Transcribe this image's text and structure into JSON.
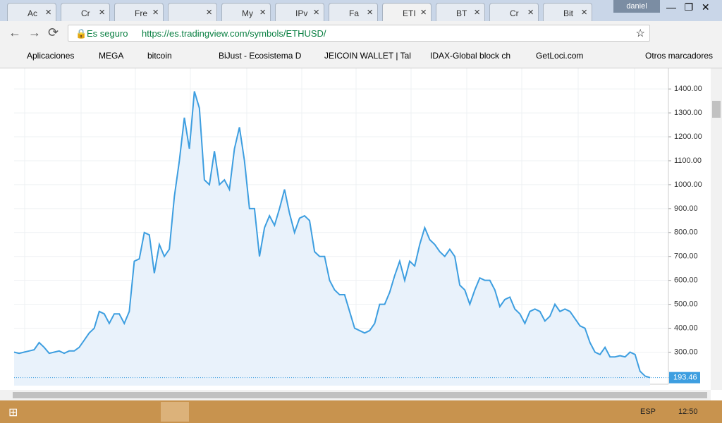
{
  "browser": {
    "user": "daniel",
    "tabs": [
      "Ac",
      "Cr",
      "Fre",
      "My",
      "IPv",
      "Fa",
      "ETI",
      "BT",
      "Cr",
      "Bit"
    ],
    "security": "Es seguro",
    "url": "https://es.tradingview.com/symbols/ETHUSD/",
    "bookmarks": [
      "Aplicaciones",
      "MEGA",
      "bitcoin",
      "BiJust - Ecosistema D",
      "JEICOIN WALLET | Tal",
      "IDAX-Global block ch",
      "GetLoci.com"
    ],
    "other_bookmarks": "Otros marcadores"
  },
  "chart_data": {
    "type": "line",
    "color": "#3d9ee0",
    "fill": "#e9f2fb",
    "ylim": [
      160,
      1486
    ],
    "yticks": [
      {
        "value": 300,
        "label": "300.00"
      },
      {
        "value": 400,
        "label": "400.00"
      },
      {
        "value": 500,
        "label": "500.00"
      },
      {
        "value": 600,
        "label": "600.00"
      },
      {
        "value": 700,
        "label": "700.00"
      },
      {
        "value": 800,
        "label": "800.00"
      },
      {
        "value": 900,
        "label": "900.00"
      },
      {
        "value": 1000,
        "label": "1000.00"
      },
      {
        "value": 1100,
        "label": "1100.00"
      },
      {
        "value": 1200,
        "label": "1200.00"
      },
      {
        "value": 1300,
        "label": "1300.00"
      },
      {
        "value": 1400,
        "label": "1400.00"
      }
    ],
    "grid": true,
    "last_price": 193.46,
    "values": [
      300,
      295,
      300,
      305,
      310,
      340,
      320,
      295,
      300,
      305,
      295,
      305,
      305,
      320,
      350,
      380,
      400,
      470,
      460,
      420,
      460,
      460,
      420,
      470,
      680,
      690,
      800,
      790,
      630,
      750,
      700,
      730,
      950,
      1100,
      1280,
      1150,
      1390,
      1320,
      1020,
      1000,
      1140,
      1000,
      1020,
      980,
      1150,
      1240,
      1100,
      900,
      900,
      700,
      820,
      870,
      830,
      900,
      980,
      880,
      800,
      860,
      870,
      850,
      720,
      700,
      700,
      600,
      560,
      540,
      540,
      470,
      400,
      390,
      380,
      390,
      420,
      500,
      500,
      550,
      620,
      680,
      600,
      680,
      660,
      750,
      820,
      770,
      750,
      720,
      700,
      730,
      700,
      580,
      560,
      500,
      560,
      610,
      600,
      600,
      560,
      490,
      520,
      530,
      480,
      460,
      420,
      470,
      480,
      470,
      430,
      450,
      500,
      470,
      480,
      470,
      440,
      410,
      400,
      340,
      300,
      290,
      320,
      280,
      280,
      285,
      280,
      300,
      290,
      220,
      200,
      193.46
    ]
  },
  "taskbar": {
    "language": "ESP",
    "time": "12:50"
  }
}
